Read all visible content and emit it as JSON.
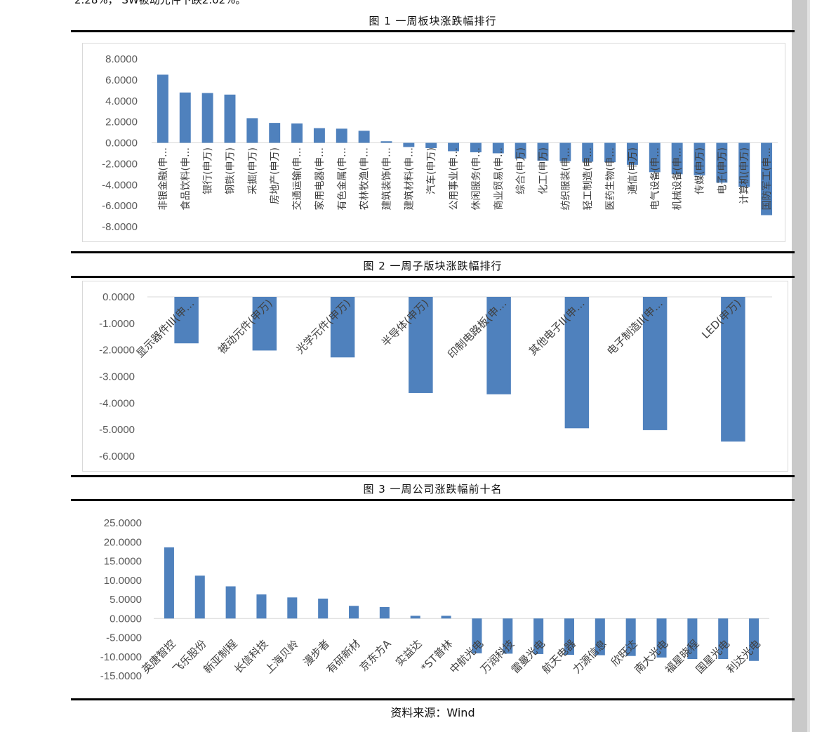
{
  "page": {
    "top_text": "2.28%， SW被动元件下跌2.02%。",
    "source": "资料来源：Wind"
  },
  "captions": {
    "fig1": "图 1 一周板块涨跌幅排行",
    "fig2": "图 2 一周子版块涨跌幅排行",
    "fig3": "图 3 一周公司涨跌幅前十名"
  },
  "chart_data": [
    {
      "type": "bar",
      "ylim": [
        -8,
        8
      ],
      "yticks": [
        "8.0000",
        "6.0000",
        "4.0000",
        "2.0000",
        "0.0000",
        "-2.0000",
        "-4.0000",
        "-6.0000",
        "-8.0000"
      ],
      "ytick_values": [
        8,
        6,
        4,
        2,
        0,
        -2,
        -4,
        -6,
        -8
      ],
      "bar_color": "#4f81bd",
      "highlight_color": "#ff0000",
      "highlight_index": 30,
      "categories": [
        "非银金融(申…",
        "食品饮料(申…",
        "银行(申万)",
        "钢铁(申万)",
        "采掘(申万)",
        "房地产(申万)",
        "交通运输(申…",
        "家用电器(申…",
        "有色金属(申…",
        "农林牧渔(申…",
        "建筑装饰(申…",
        "建筑材料(申…",
        "汽车(申万)",
        "公用事业(申…",
        "休闲服务(申…",
        "商业贸易(申…",
        "综合(申万)",
        "化工(申万)",
        "纺织服装(申…",
        "轻工制造(申…",
        "医药生物(申…",
        "通信(申万)",
        "电气设备(申…",
        "机械设备(申…",
        "传媒(申万)",
        "电子(申万)",
        "计算机(申万)",
        "国防军工(申…"
      ],
      "values": [
        6.5,
        4.8,
        4.75,
        4.6,
        2.35,
        1.9,
        1.85,
        1.4,
        1.35,
        1.15,
        0.15,
        -0.4,
        -0.5,
        -0.8,
        -0.9,
        -1.0,
        -1.5,
        -1.7,
        -1.75,
        -1.8,
        -1.85,
        -2.1,
        -2.8,
        -3.0,
        -3.1,
        -3.8,
        -4.2,
        -6.9
      ]
    },
    {
      "type": "bar",
      "ylim": [
        -6,
        0
      ],
      "yticks": [
        "0.0000",
        "-1.0000",
        "-2.0000",
        "-3.0000",
        "-4.0000",
        "-5.0000",
        "-6.0000"
      ],
      "ytick_values": [
        0,
        -1,
        -2,
        -3,
        -4,
        -5,
        -6
      ],
      "bar_color": "#4f81bd",
      "categories": [
        "显示器件III(申…",
        "被动元件(申万)",
        "光学元件(申万)",
        "半导体(申万)",
        "印制电路板(申…",
        "其他电子II(申…",
        "电子制造II(申…",
        "LED(申万)"
      ],
      "values": [
        -1.75,
        -2.02,
        -2.28,
        -3.62,
        -3.67,
        -4.95,
        -5.02,
        -5.45
      ]
    },
    {
      "type": "bar",
      "ylim": [
        -15,
        25
      ],
      "yticks": [
        "25.0000",
        "20.0000",
        "15.0000",
        "10.0000",
        "5.0000",
        "0.0000",
        "-5.0000",
        "-10.0000",
        "-15.0000"
      ],
      "ytick_values": [
        25,
        20,
        15,
        10,
        5,
        0,
        -5,
        -10,
        -15
      ],
      "bar_color": "#4f81bd",
      "categories": [
        "英唐智控",
        "飞乐股份",
        "新亚制程",
        "长信科技",
        "上海贝岭",
        "漫步者",
        "有研新材",
        "京东方A",
        "实益达",
        "*ST普林",
        "中航光电",
        "万润科技",
        "雷曼光电",
        "航天电器",
        "力源信息",
        "欣旺达",
        "南大光电",
        "福星晓程",
        "国星光电",
        "利达光电"
      ],
      "values": [
        18.6,
        11.2,
        8.4,
        6.3,
        5.5,
        5.2,
        3.3,
        3.0,
        0.7,
        0.7,
        -9.1,
        -9.2,
        -9.3,
        -9.5,
        -9.6,
        -9.8,
        -10.2,
        -10.6,
        -10.6,
        -11.1
      ]
    }
  ]
}
